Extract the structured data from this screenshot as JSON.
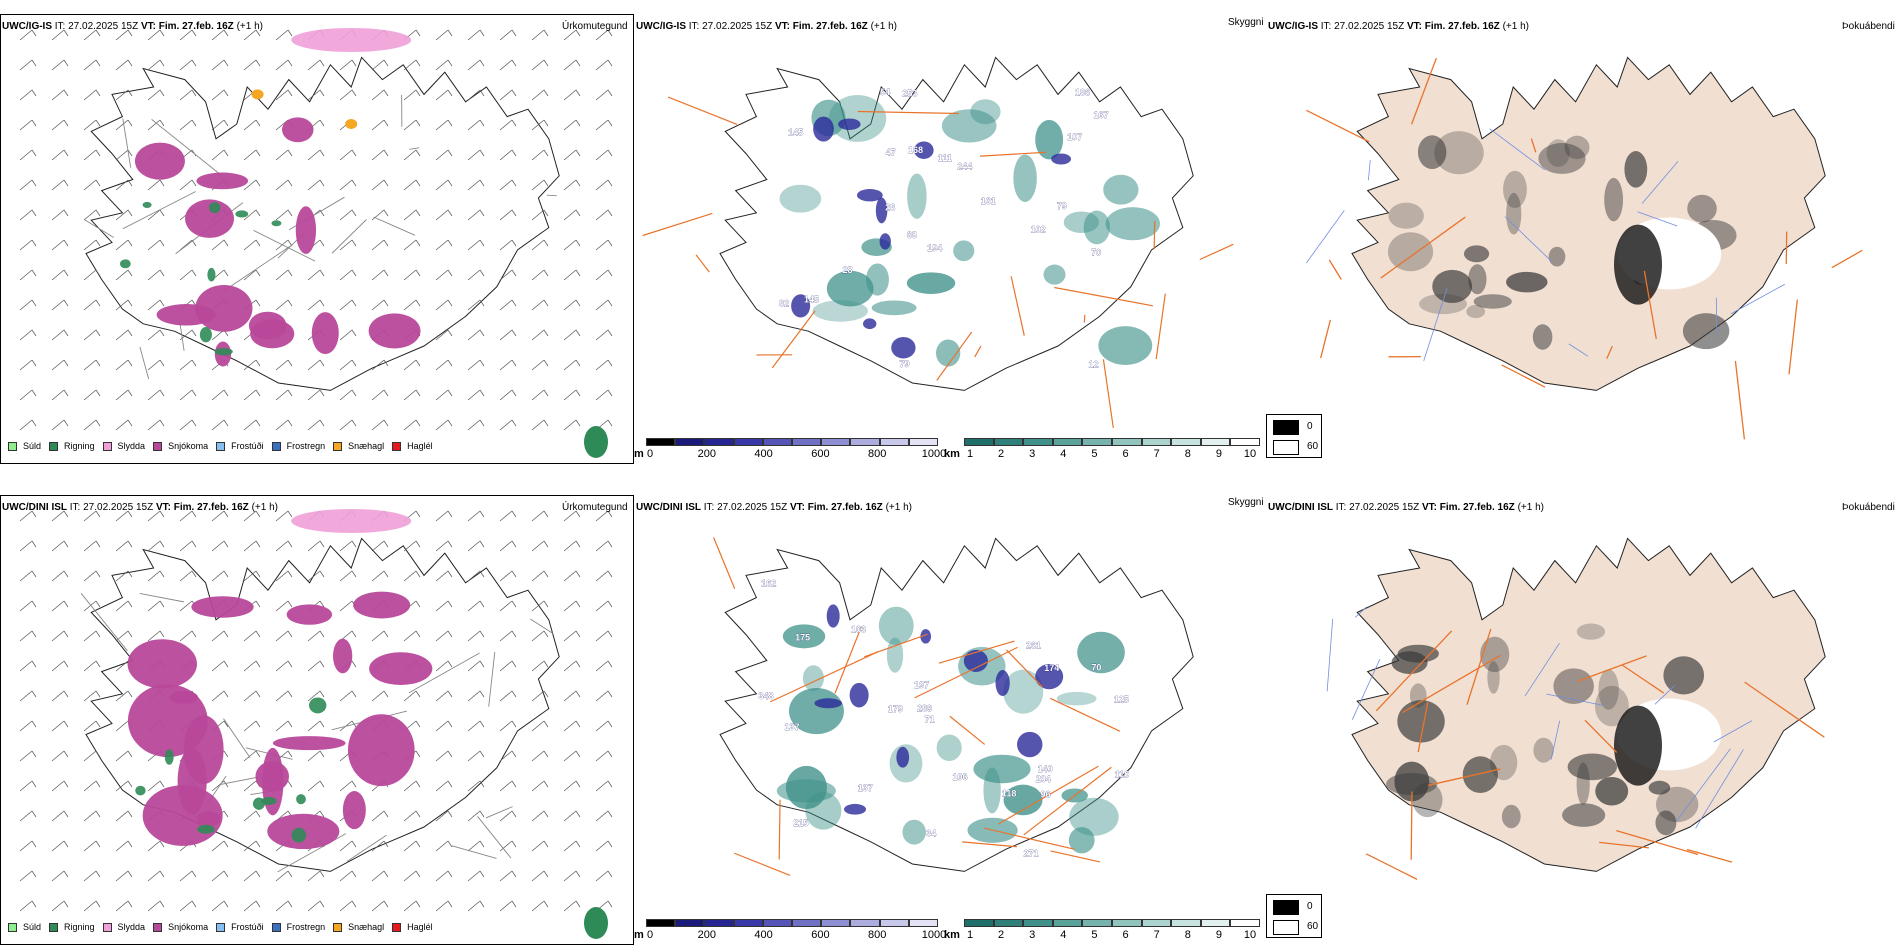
{
  "rows": [
    {
      "model": "UWC/IG-IS",
      "it_label": "IT:",
      "it_value": "27.02.2025 15Z",
      "vt_label": "VT:",
      "vt_value": "Fim. 27.feb. 16Z",
      "lead": "(+1 h)"
    },
    {
      "model": "UWC/DINI ISL",
      "it_label": "IT:",
      "it_value": "27.02.2025 15Z",
      "vt_label": "VT:",
      "vt_value": "Fim. 27.feb. 16Z",
      "lead": "(+1 h)"
    }
  ],
  "panels": {
    "precip_type": {
      "label": "Úrkomutegund",
      "legend": [
        {
          "label": "Súld",
          "color": "#90ee90"
        },
        {
          "label": "Rigning",
          "color": "#2e8b57"
        },
        {
          "label": "Slydda",
          "color": "#f0a0d8"
        },
        {
          "label": "Snjókoma",
          "color": "#b8489a"
        },
        {
          "label": "Frostúði",
          "color": "#87bff0"
        },
        {
          "label": "Frostregn",
          "color": "#3b6fc0"
        },
        {
          "label": "Snæhagl",
          "color": "#f5a623"
        },
        {
          "label": "Haglél",
          "color": "#e41a1c"
        }
      ]
    },
    "visibility": {
      "label": "Skyggni",
      "ceiling_unit": "m",
      "ceiling_ticks": [
        "0",
        "200",
        "400",
        "600",
        "800",
        "1000"
      ],
      "ceiling_colors": [
        "#000000",
        "#1a1a7a",
        "#262693",
        "#3838a8",
        "#5555b8",
        "#7070c4",
        "#8e8ed2",
        "#acacde",
        "#c8c8ea",
        "#e3e3f5"
      ],
      "vis_unit": "km",
      "vis_ticks": [
        "1",
        "2",
        "3",
        "4",
        "5",
        "6",
        "7",
        "8",
        "9",
        "10"
      ],
      "vis_colors": [
        "#1f6f6a",
        "#2f807a",
        "#3f918a",
        "#5aa39b",
        "#75b3ac",
        "#90c4bd",
        "#abd4ce",
        "#c6e3df",
        "#e2f1ef",
        "#ffffff"
      ],
      "row1_values": [
        "161",
        "107",
        "28",
        "70",
        "145",
        "111",
        "68",
        "54",
        "82",
        "194",
        "167",
        "168",
        "253",
        "145",
        "186",
        "244",
        "47",
        "102",
        "28",
        "12",
        "79",
        "79"
      ],
      "row2_values": [
        "162",
        "34",
        "175",
        "137",
        "71",
        "289",
        "137",
        "174",
        "106",
        "96",
        "204",
        "261",
        "118",
        "271",
        "179",
        "215",
        "348",
        "140",
        "197",
        "125",
        "103",
        "110",
        "70"
      ]
    },
    "fog": {
      "label": "Þokuábendi",
      "legend_values": [
        "0",
        "60"
      ]
    }
  },
  "colors": {
    "roads": "#e8742c",
    "coast": "#222222",
    "land_fog": "#f1dfd2",
    "rivers": "#6f8fe0"
  }
}
